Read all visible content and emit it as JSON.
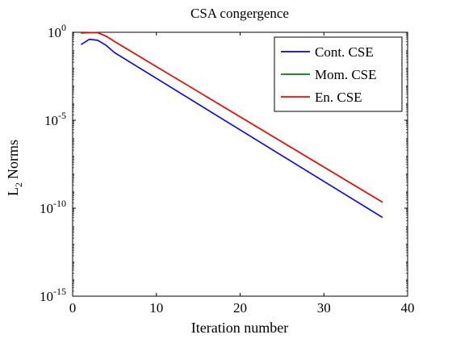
{
  "chart_data": {
    "type": "line",
    "title": "CSA congergence",
    "xlabel": "Iteration number",
    "ylabel": "Norms",
    "ylabel_prefix": "L",
    "ylabel_subscript": "2",
    "xlim": [
      0,
      40
    ],
    "ylim_exponent": [
      -15,
      0
    ],
    "y_scale": "log",
    "x_ticks": [
      0,
      10,
      20,
      30,
      40
    ],
    "y_ticks": [
      {
        "base": "10",
        "exp": "0",
        "value": 1
      },
      {
        "base": "10",
        "exp": "-5",
        "value": 1e-05
      },
      {
        "base": "10",
        "exp": "-10",
        "value": 1e-10
      },
      {
        "base": "10",
        "exp": "-15",
        "value": 1e-15
      }
    ],
    "grid": false,
    "legend_position": "top-right",
    "series": [
      {
        "name": "Cont. CSE",
        "color": "#0000ff",
        "x": [
          1,
          2,
          3,
          4,
          5,
          37
        ],
        "y": [
          0.2,
          0.4,
          0.35,
          0.18,
          0.07,
          3e-11
        ]
      },
      {
        "name": "Mom. CSE",
        "color": "#008000",
        "x": [
          1,
          2,
          3,
          4,
          5,
          37
        ],
        "y": [
          0.9,
          0.95,
          0.95,
          0.6,
          0.3,
          2.2e-10
        ]
      },
      {
        "name": "En. CSE",
        "color": "#ff0000",
        "x": [
          1,
          2,
          3,
          4,
          5,
          37
        ],
        "y": [
          0.9,
          0.95,
          0.95,
          0.6,
          0.3,
          2.2e-10
        ]
      }
    ]
  }
}
